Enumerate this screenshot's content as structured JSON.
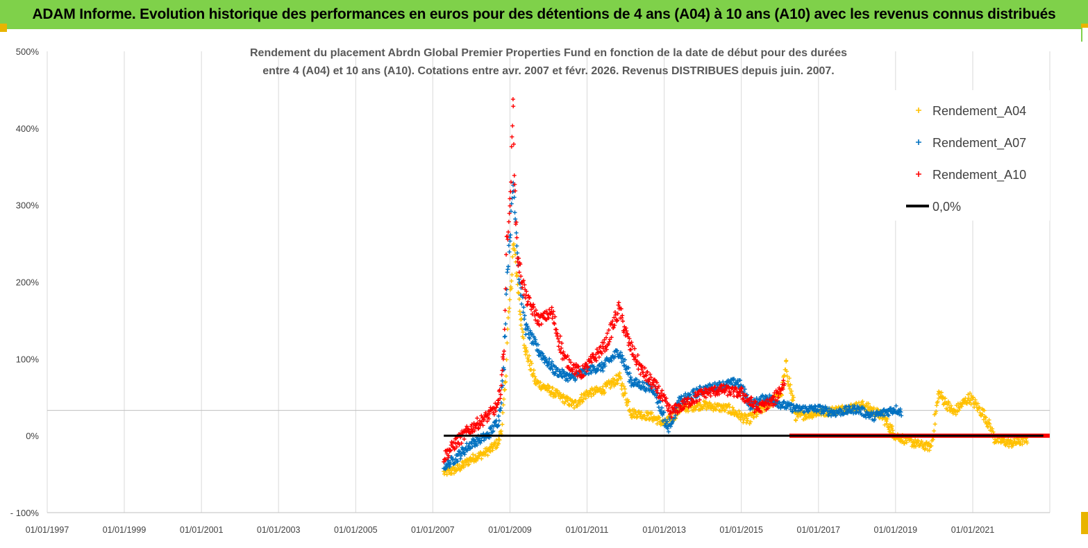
{
  "banner": {
    "title": "ADAM Informe. Evolution historique des performances en euros pour des détentions de 4 ans (A04) à 10 ans (A10) avec les revenus connus distribués",
    "bg_color": "#7fd14a"
  },
  "chart_data": {
    "type": "scatter",
    "title_lines": [
      "Rendement du placement Abrdn Global Premier Properties Fund en fonction de la date de début pour des durées",
      "entre 4 (A04) et 10 ans (A10).  Cotations entre avr. 2007 et févr. 2026. Revenus DISTRIBUES depuis juin. 2007."
    ],
    "x_axis": {
      "type": "date",
      "min": "1997-01-01",
      "max": "2023-01-01",
      "tick_labels": [
        "01/01/1997",
        "01/01/1999",
        "01/01/2001",
        "01/01/2003",
        "01/01/2005",
        "01/01/2007",
        "01/01/2009",
        "01/01/2011",
        "01/01/2013",
        "01/01/2015",
        "01/01/2017",
        "01/01/2019",
        "01/01/2021"
      ]
    },
    "y_axis": {
      "min": -100,
      "max": 500,
      "unit": "%",
      "tick_labels": [
        "- 100%",
        "0%",
        "100%",
        "200%",
        "300%",
        "400%",
        "500%"
      ]
    },
    "grid": "vertical",
    "legend": {
      "position": "right",
      "entries": [
        {
          "label": "Rendement_A04",
          "color": "#ffc000",
          "marker": "+"
        },
        {
          "label": "Rendement_A07",
          "color": "#0070c0",
          "marker": "+"
        },
        {
          "label": "Rendement_A10",
          "color": "#ff0000",
          "marker": "+"
        },
        {
          "label": "0,0%",
          "color": "#000000",
          "marker": "line"
        }
      ]
    },
    "series": [
      {
        "name": "Rendement_A04",
        "color": "#ffc000",
        "points": [
          [
            "2007-04-15",
            -48
          ],
          [
            "2007-07-01",
            -46
          ],
          [
            "2007-10-01",
            -40
          ],
          [
            "2008-01-01",
            -30
          ],
          [
            "2008-04-01",
            -25
          ],
          [
            "2008-07-01",
            -18
          ],
          [
            "2008-09-15",
            -8
          ],
          [
            "2008-10-15",
            10
          ],
          [
            "2008-11-15",
            60
          ],
          [
            "2008-12-15",
            150
          ],
          [
            "2009-01-15",
            200
          ],
          [
            "2009-02-01",
            250
          ],
          [
            "2009-02-20",
            240
          ],
          [
            "2009-03-10",
            200
          ],
          [
            "2009-04-15",
            150
          ],
          [
            "2009-06-01",
            110
          ],
          [
            "2009-09-01",
            70
          ],
          [
            "2010-01-01",
            60
          ],
          [
            "2010-05-01",
            50
          ],
          [
            "2010-09-01",
            40
          ],
          [
            "2011-01-01",
            55
          ],
          [
            "2011-06-01",
            60
          ],
          [
            "2011-11-01",
            75
          ],
          [
            "2012-03-01",
            30
          ],
          [
            "2012-09-01",
            25
          ],
          [
            "2013-01-15",
            15
          ],
          [
            "2013-06-01",
            35
          ],
          [
            "2014-01-01",
            40
          ],
          [
            "2014-09-01",
            35
          ],
          [
            "2015-03-01",
            20
          ],
          [
            "2015-09-01",
            40
          ],
          [
            "2016-01-15",
            55
          ],
          [
            "2016-03-01",
            90
          ],
          [
            "2016-06-01",
            25
          ],
          [
            "2017-01-01",
            30
          ],
          [
            "2017-09-01",
            35
          ],
          [
            "2018-03-01",
            40
          ],
          [
            "2018-09-01",
            25
          ],
          [
            "2019-01-01",
            0
          ],
          [
            "2019-07-01",
            -10
          ],
          [
            "2019-12-01",
            -15
          ],
          [
            "2020-02-15",
            55
          ],
          [
            "2020-07-01",
            30
          ],
          [
            "2020-12-01",
            50
          ],
          [
            "2021-05-01",
            25
          ],
          [
            "2021-08-01",
            -5
          ],
          [
            "2022-01-01",
            -10
          ],
          [
            "2022-06-01",
            -5
          ]
        ]
      },
      {
        "name": "Rendement_A07",
        "color": "#0070c0",
        "points": [
          [
            "2007-04-15",
            -40
          ],
          [
            "2007-08-01",
            -30
          ],
          [
            "2008-01-01",
            -10
          ],
          [
            "2008-06-01",
            0
          ],
          [
            "2008-09-15",
            20
          ],
          [
            "2008-11-01",
            80
          ],
          [
            "2008-12-01",
            200
          ],
          [
            "2009-01-01",
            260
          ],
          [
            "2009-02-01",
            330
          ],
          [
            "2009-02-20",
            290
          ],
          [
            "2009-04-01",
            200
          ],
          [
            "2009-06-01",
            140
          ],
          [
            "2009-10-01",
            110
          ],
          [
            "2010-03-01",
            85
          ],
          [
            "2010-08-01",
            75
          ],
          [
            "2011-01-01",
            85
          ],
          [
            "2011-06-01",
            90
          ],
          [
            "2011-11-01",
            110
          ],
          [
            "2012-03-01",
            70
          ],
          [
            "2012-10-01",
            60
          ],
          [
            "2013-02-01",
            10
          ],
          [
            "2013-06-01",
            45
          ],
          [
            "2014-01-01",
            60
          ],
          [
            "2014-06-01",
            65
          ],
          [
            "2014-12-01",
            70
          ],
          [
            "2015-04-01",
            40
          ],
          [
            "2015-09-01",
            50
          ],
          [
            "2016-02-01",
            40
          ],
          [
            "2016-06-01",
            35
          ],
          [
            "2017-01-01",
            35
          ],
          [
            "2017-06-01",
            30
          ],
          [
            "2018-01-01",
            35
          ],
          [
            "2018-06-01",
            25
          ],
          [
            "2019-01-01",
            35
          ],
          [
            "2019-03-01",
            30
          ]
        ]
      },
      {
        "name": "Rendement_A10",
        "color": "#ff0000",
        "points": [
          [
            "2007-04-15",
            -28
          ],
          [
            "2007-08-01",
            -10
          ],
          [
            "2008-01-01",
            10
          ],
          [
            "2008-06-01",
            25
          ],
          [
            "2008-09-15",
            40
          ],
          [
            "2008-11-01",
            100
          ],
          [
            "2008-12-01",
            250
          ],
          [
            "2009-01-01",
            300
          ],
          [
            "2009-01-20",
            380
          ],
          [
            "2009-02-01",
            440
          ],
          [
            "2009-02-15",
            320
          ],
          [
            "2009-03-15",
            230
          ],
          [
            "2009-06-01",
            180
          ],
          [
            "2009-10-01",
            150
          ],
          [
            "2010-02-01",
            160
          ],
          [
            "2010-06-01",
            100
          ],
          [
            "2010-11-01",
            80
          ],
          [
            "2011-03-01",
            100
          ],
          [
            "2011-07-01",
            120
          ],
          [
            "2011-11-01",
            165
          ],
          [
            "2012-02-01",
            120
          ],
          [
            "2012-06-01",
            85
          ],
          [
            "2012-11-01",
            60
          ],
          [
            "2013-03-01",
            30
          ],
          [
            "2013-07-01",
            40
          ],
          [
            "2014-01-01",
            55
          ],
          [
            "2014-07-01",
            60
          ],
          [
            "2015-01-01",
            55
          ],
          [
            "2015-06-01",
            35
          ],
          [
            "2015-11-01",
            45
          ],
          [
            "2016-02-15",
            70
          ]
        ]
      }
    ],
    "zero_segment": {
      "label": "0,0%",
      "from": "2007-04-15",
      "to": "2022-11-01",
      "value": 0,
      "color": "#000000"
    },
    "a10_zero_run": {
      "from": "2016-04-01",
      "to": "2022-12-31",
      "value": 0,
      "color": "#ff0000"
    }
  }
}
